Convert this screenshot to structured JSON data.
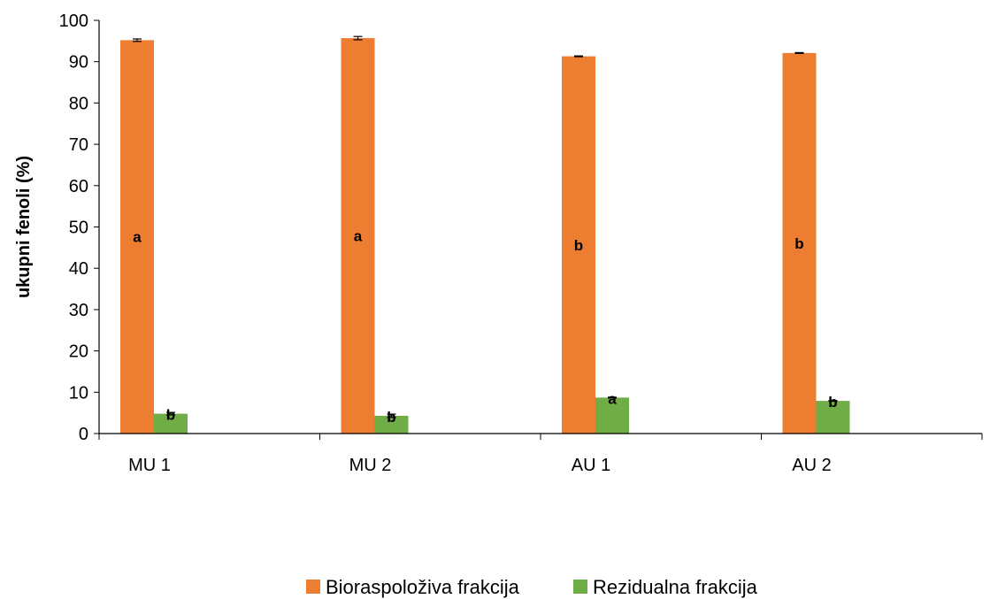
{
  "chart_data": {
    "type": "bar",
    "title": "",
    "xlabel": "",
    "ylabel": "ukupni fenoli (%)",
    "ylim": [
      0,
      100
    ],
    "yticks": [
      0,
      10,
      20,
      30,
      40,
      50,
      60,
      70,
      80,
      90,
      100
    ],
    "categories": [
      "MU 1",
      "MU 2",
      "AU 1",
      "AU 2"
    ],
    "grid": false,
    "legend_position": "bottom",
    "series": [
      {
        "name": "Bioraspoloživa frakcija",
        "color": "#ED7D31",
        "values": [
          95.2,
          95.7,
          91.3,
          92.1
        ],
        "errors": [
          0.3,
          0.4,
          0.1,
          0.1
        ],
        "labels": [
          "a",
          "a",
          "b",
          "b"
        ]
      },
      {
        "name": "Rezidualna frakcija",
        "color": "#70AD47",
        "values": [
          4.8,
          4.3,
          8.7,
          7.9
        ],
        "errors": [
          0.3,
          0.4,
          0.1,
          0.1
        ],
        "labels": [
          "b",
          "b",
          "a",
          "b"
        ]
      }
    ]
  }
}
